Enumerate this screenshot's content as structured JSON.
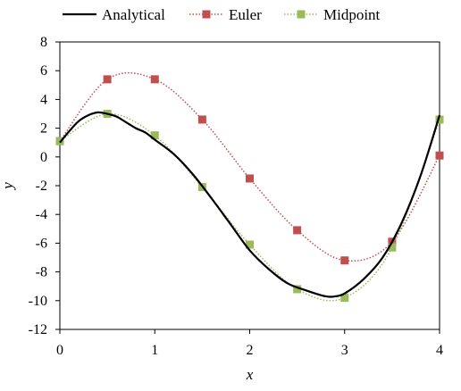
{
  "chart_data": {
    "type": "line",
    "xlabel": "x",
    "ylabel": "y",
    "xlim": [
      0,
      4
    ],
    "ylim": [
      -12,
      8
    ],
    "xticks": [
      0,
      1,
      2,
      3,
      4
    ],
    "yticks": [
      8,
      6,
      4,
      2,
      0,
      -2,
      -4,
      -6,
      -8,
      -10,
      -12
    ],
    "grid": false,
    "legend_position": "top",
    "series": [
      {
        "name": "Analytical",
        "color": "#000000",
        "line_style": "solid",
        "marker": "none",
        "x": [
          0,
          0.1,
          0.2,
          0.3,
          0.4,
          0.5,
          0.6,
          0.7,
          0.8,
          0.9,
          1.0,
          1.2,
          1.4,
          1.6,
          1.8,
          2.0,
          2.2,
          2.4,
          2.6,
          2.8,
          2.9,
          3.0,
          3.2,
          3.4,
          3.6,
          3.8,
          4.0
        ],
        "y": [
          1.0,
          1.8,
          2.5,
          2.9,
          3.1,
          3.0,
          2.8,
          2.4,
          2.0,
          1.7,
          1.2,
          0.2,
          -1.2,
          -2.9,
          -4.7,
          -6.5,
          -7.8,
          -8.8,
          -9.3,
          -9.7,
          -9.7,
          -9.5,
          -8.5,
          -7.0,
          -4.6,
          -1.3,
          2.9
        ]
      },
      {
        "name": "Euler",
        "color": "#c0504d",
        "line_style": "dotted",
        "marker": "square",
        "x": [
          0,
          0.5,
          1.0,
          1.5,
          2.0,
          2.5,
          3.0,
          3.5,
          4.0
        ],
        "y": [
          1.1,
          5.4,
          5.4,
          2.6,
          -1.5,
          -5.1,
          -7.2,
          -5.9,
          0.1
        ]
      },
      {
        "name": "Midpoint",
        "color": "#9bbb59",
        "line_style": "dotted",
        "marker": "square",
        "x": [
          0,
          0.5,
          1.0,
          1.5,
          2.0,
          2.5,
          3.0,
          3.5,
          4.0
        ],
        "y": [
          1.1,
          3.0,
          1.5,
          -2.1,
          -6.1,
          -9.2,
          -9.8,
          -6.3,
          2.6
        ]
      }
    ]
  }
}
